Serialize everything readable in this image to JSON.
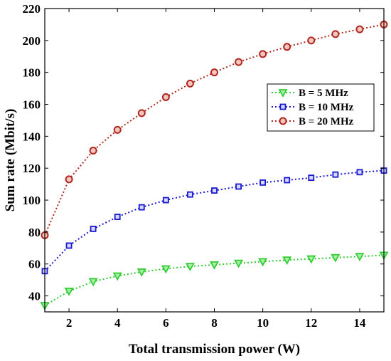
{
  "chart_data": {
    "type": "line",
    "title": "",
    "xlabel": "Total transmission power (W)",
    "ylabel": "Sum rate (Mbit/s)",
    "xlim": [
      1,
      15
    ],
    "ylim": [
      30,
      220
    ],
    "xticks": [
      2,
      4,
      6,
      8,
      10,
      12,
      14
    ],
    "yticks": [
      40,
      60,
      80,
      100,
      120,
      140,
      160,
      180,
      200,
      220
    ],
    "grid": false,
    "legend_position": "right",
    "x": [
      1,
      2,
      3,
      4,
      5,
      6,
      7,
      8,
      9,
      10,
      11,
      12,
      13,
      14,
      15
    ],
    "series": [
      {
        "name": "B = 5 MHz",
        "color": "#33cc33",
        "marker": "triangle-down",
        "values": [
          34,
          43,
          49,
          52.5,
          55,
          57,
          58.5,
          59.5,
          60.5,
          61.5,
          62.5,
          63.2,
          64,
          64.7,
          65.5
        ]
      },
      {
        "name": "B = 10 MHz",
        "color": "#1a1acc",
        "marker": "square",
        "values": [
          55.5,
          71.5,
          82,
          89.5,
          95.5,
          100,
          103.5,
          106,
          108.5,
          111,
          112.5,
          114,
          116,
          117.5,
          118.5
        ]
      },
      {
        "name": "B = 20 MHz",
        "color": "#b0281e",
        "marker": "circle",
        "values": [
          78,
          113,
          131,
          144,
          154.5,
          164.5,
          173,
          180,
          186.5,
          191.5,
          196,
          200,
          204,
          207,
          210
        ]
      }
    ]
  }
}
